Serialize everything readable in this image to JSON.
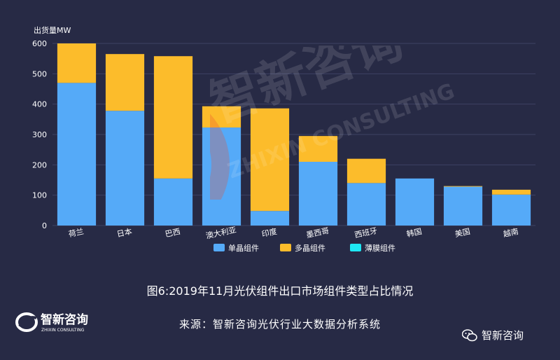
{
  "chart_data": {
    "type": "bar",
    "stacked": true,
    "ylabel": "出货量MW",
    "ylim": [
      0,
      600
    ],
    "yticks": [
      0,
      100,
      200,
      300,
      400,
      500,
      600
    ],
    "categories": [
      "荷兰",
      "日本",
      "巴西",
      "澳大利亚",
      "印度",
      "墨西哥",
      "西班牙",
      "韩国",
      "美国",
      "越南"
    ],
    "series": [
      {
        "name": "单晶组件",
        "color": "#55aaf8",
        "values": [
          470,
          378,
          155,
          323,
          48,
          210,
          140,
          155,
          128,
          102
        ]
      },
      {
        "name": "多晶组件",
        "color": "#fcbc2b",
        "values": [
          130,
          187,
          403,
          70,
          338,
          85,
          80,
          0,
          2,
          16
        ]
      },
      {
        "name": "薄膜组件",
        "color": "#1ee8f4",
        "values": [
          0,
          0,
          0,
          0,
          0,
          0,
          0,
          0,
          0,
          0
        ]
      }
    ],
    "legend_position": "bottom",
    "grid": true
  },
  "caption": "图6:2019年11月光伏组件出口市场组件类型占比情况",
  "source": "来源：智新咨询光伏行业大数据分析系统",
  "brand": {
    "name": "智新咨询",
    "subtitle": "ZHIXIN CONSULTING"
  },
  "wechat_label": "智新咨询",
  "watermark": {
    "title": "智新咨询",
    "subtitle": "ZHIXIN CONSULTING"
  }
}
